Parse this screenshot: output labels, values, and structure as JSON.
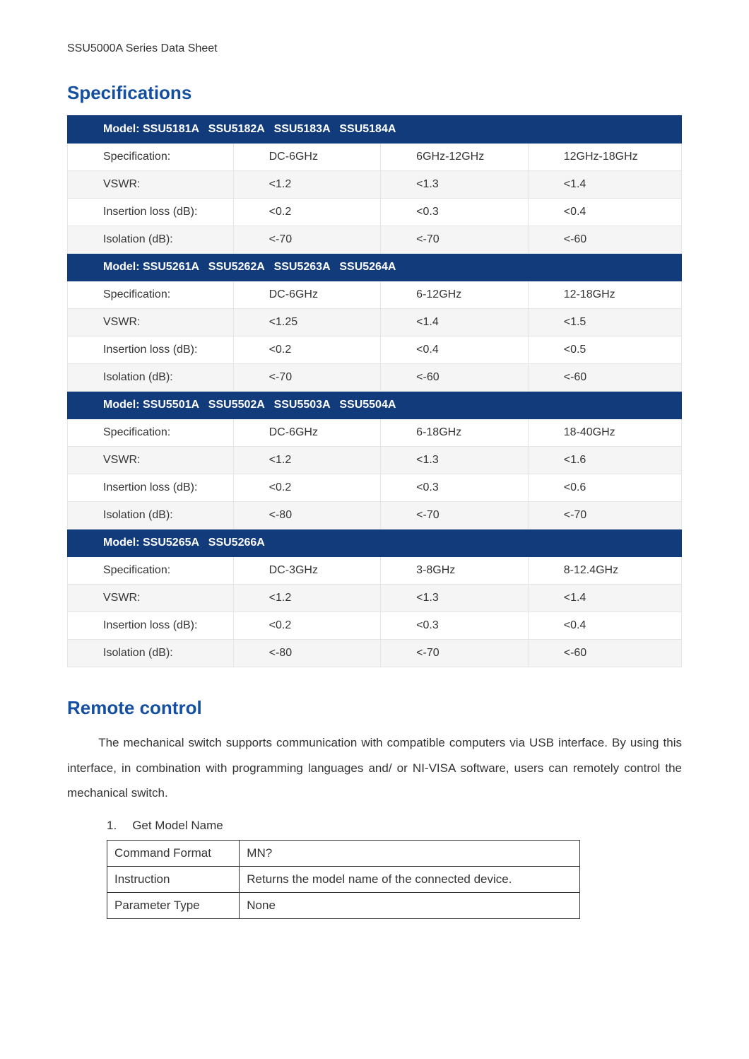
{
  "doc_header": "SSU5000A Series Data Sheet",
  "sections": {
    "specifications": {
      "title": "Specifications",
      "model_label_prefix": "Model:",
      "row_labels": [
        "Specification:",
        "VSWR:",
        "Insertion loss (dB):",
        "Isolation (dB):"
      ],
      "groups": [
        {
          "models": "SSU5181A   SSU5182A   SSU5183A   SSU5184A",
          "rows": [
            [
              "DC-6GHz",
              "6GHz-12GHz",
              "12GHz-18GHz"
            ],
            [
              "<1.2",
              "<1.3",
              "<1.4"
            ],
            [
              "<0.2",
              "<0.3",
              "<0.4"
            ],
            [
              "<-70",
              "<-70",
              "<-60"
            ]
          ]
        },
        {
          "models": "SSU5261A   SSU5262A   SSU5263A   SSU5264A",
          "rows": [
            [
              "DC-6GHz",
              "6-12GHz",
              "12-18GHz"
            ],
            [
              "<1.25",
              "<1.4",
              "<1.5"
            ],
            [
              "<0.2",
              "<0.4",
              "<0.5"
            ],
            [
              "<-70",
              "<-60",
              "<-60"
            ]
          ]
        },
        {
          "models": "SSU5501A   SSU5502A   SSU5503A   SSU5504A",
          "rows": [
            [
              "DC-6GHz",
              "6-18GHz",
              "18-40GHz"
            ],
            [
              "<1.2",
              "<1.3",
              "<1.6"
            ],
            [
              "<0.2",
              "<0.3",
              "<0.6"
            ],
            [
              "<-80",
              "<-70",
              "<-70"
            ]
          ]
        },
        {
          "models": "SSU5265A   SSU5266A",
          "rows": [
            [
              "DC-3GHz",
              "3-8GHz",
              "8-12.4GHz"
            ],
            [
              "<1.2",
              "<1.3",
              "<1.4"
            ],
            [
              "<0.2",
              "<0.3",
              "<0.4"
            ],
            [
              "<-80",
              "<-70",
              "<-60"
            ]
          ]
        }
      ]
    },
    "remote": {
      "title": "Remote control",
      "paragraph": "The mechanical switch supports communication with compatible computers via USB interface. By using this interface, in combination with programming languages and/ or NI-VISA software, users can remotely control the mechanical switch.",
      "list_item": {
        "num": "1.",
        "text": "Get Model Name"
      },
      "cmd_table": [
        [
          "Command Format",
          "MN?"
        ],
        [
          "Instruction",
          "Returns the model name of the connected device."
        ],
        [
          "Parameter Type",
          "None"
        ]
      ]
    }
  },
  "colors": {
    "heading_blue": "#144fa0",
    "model_row_bg": "#113b7a",
    "alt_row_bg": "#f5f5f5",
    "border_grey": "#e5e5e5",
    "outer_border": "#d9d9d9",
    "text": "#333333",
    "page_bg": "#ffffff"
  }
}
